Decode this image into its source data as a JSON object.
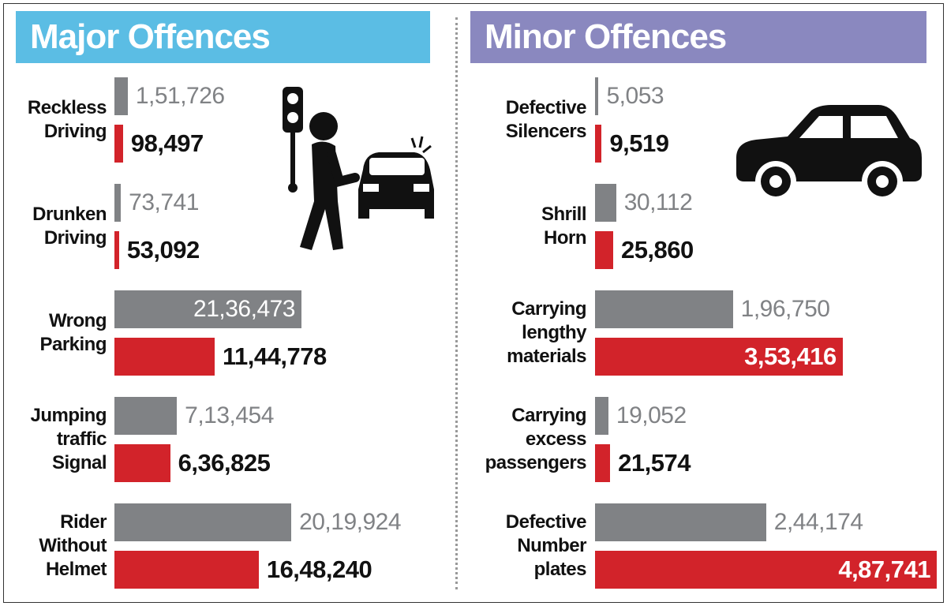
{
  "chart_data": [
    {
      "type": "bar",
      "orientation": "horizontal",
      "title": "Major Offences",
      "categories": [
        "Reckless Driving",
        "Drunken Driving",
        "Wrong Parking",
        "Jumping traffic Signal",
        "Rider Without Helmet"
      ],
      "series": [
        {
          "color": "#808285",
          "values": [
            151726,
            73741,
            2136473,
            713454,
            2019924
          ],
          "value_labels": [
            "1,51,726",
            "73,741",
            "21,36,473",
            "7,13,454",
            "20,19,924"
          ]
        },
        {
          "color": "#d2232a",
          "values": [
            98497,
            53092,
            1144778,
            636825,
            1648240
          ],
          "value_labels": [
            "98,497",
            "53,092",
            "11,44,778",
            "6,36,825",
            "16,48,240"
          ]
        }
      ]
    },
    {
      "type": "bar",
      "orientation": "horizontal",
      "title": "Minor Offences",
      "categories": [
        "Defective Silencers",
        "Shrill Horn",
        "Carrying lengthy materials",
        "Carrying excess passengers",
        "Defective Number plates"
      ],
      "series": [
        {
          "color": "#808285",
          "values": [
            5053,
            30112,
            196750,
            19052,
            244174
          ],
          "value_labels": [
            "5,053",
            "30,112",
            "1,96,750",
            "19,052",
            "2,44,174"
          ]
        },
        {
          "color": "#d2232a",
          "values": [
            9519,
            25860,
            353416,
            21574,
            487741
          ],
          "value_labels": [
            "9,519",
            "25,860",
            "3,53,416",
            "21,574",
            "4,87,741"
          ]
        }
      ]
    }
  ]
}
